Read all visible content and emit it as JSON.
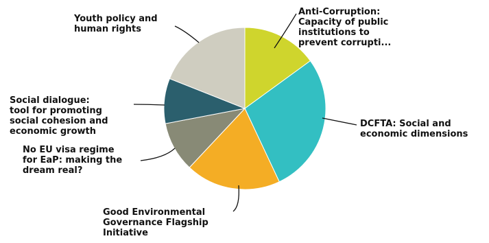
{
  "chart_data": {
    "type": "pie",
    "title": "",
    "start_angle_deg": 0,
    "direction": "clockwise",
    "slices": [
      {
        "label_lines": [
          "Anti-Corruption:",
          "Capacity of public",
          "institutions to",
          "prevent corrupti..."
        ],
        "value": 15,
        "color": "#cfd52d"
      },
      {
        "label_lines": [
          "DCFTA: Social and",
          "economic dimensions"
        ],
        "value": 28,
        "color": "#33bfc2"
      },
      {
        "label_lines": [
          "Good Environmental",
          "Governance Flagship",
          "Initiative"
        ],
        "value": 19,
        "color": "#f4ad25"
      },
      {
        "label_lines": [
          "No EU visa regime",
          "for EaP: making the",
          "dream real?"
        ],
        "value": 10,
        "color": "#888a76"
      },
      {
        "label_lines": [
          "Social dialogue:",
          "tool for promoting",
          "social cohesion and",
          "economic growth"
        ],
        "value": 9,
        "color": "#2b5f6d"
      },
      {
        "label_lines": [
          "Youth policy and",
          "human rights"
        ],
        "value": 19,
        "color": "#cfcdc0"
      }
    ]
  }
}
